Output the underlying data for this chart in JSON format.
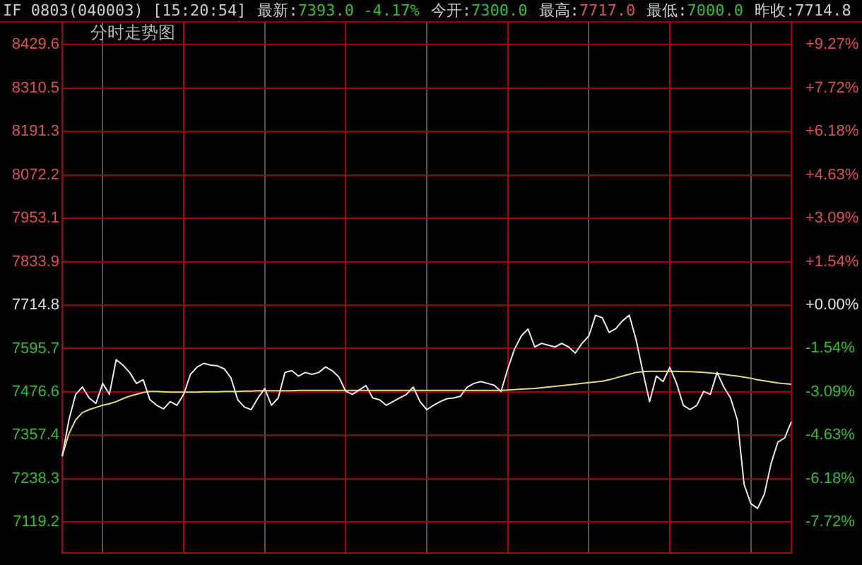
{
  "chart_data": {
    "type": "line",
    "title": "IF 0803(040003) [15:20:54]",
    "subtitle": "分时走势图",
    "annotations": [
      "最新:7393.0 -4.17%",
      "今开:7300.0",
      "最高:7717.0",
      "最低:7000.0",
      "昨收:7714.8"
    ],
    "categories": [
      null,
      null,
      null,
      null,
      null,
      null,
      null,
      null,
      null,
      null,
      null,
      null,
      null,
      null,
      null,
      null,
      null,
      null,
      null,
      null,
      null,
      null,
      null,
      null,
      null,
      null,
      null,
      null,
      null,
      null,
      null,
      null,
      null,
      null,
      null,
      null,
      null,
      null,
      null,
      null,
      null,
      null,
      null,
      null,
      null,
      null,
      null,
      null,
      null,
      null,
      null,
      null,
      null,
      null,
      null,
      null,
      null,
      null,
      null,
      null,
      null,
      null,
      null,
      null,
      null,
      null,
      null,
      null,
      null,
      null,
      null,
      null,
      null,
      null,
      null,
      null,
      null,
      null,
      null,
      null,
      null,
      null,
      null,
      null,
      null,
      null,
      null,
      null,
      null,
      null,
      null,
      null,
      null,
      null,
      null,
      null,
      null,
      null,
      null,
      null,
      null,
      null,
      null,
      null,
      null,
      null,
      null,
      null,
      null
    ],
    "series": [
      {
        "color": "#e8e8e8",
        "values": [
          7300,
          7400,
          7470,
          7490,
          7460,
          7445,
          7500,
          7470,
          7565,
          7550,
          7530,
          7500,
          7510,
          7455,
          7440,
          7430,
          7450,
          7440,
          7470,
          7525,
          7545,
          7555,
          7550,
          7548,
          7540,
          7515,
          7455,
          7435,
          7428,
          7460,
          7486,
          7440,
          7460,
          7530,
          7535,
          7520,
          7530,
          7525,
          7530,
          7545,
          7535,
          7517,
          7478,
          7470,
          7482,
          7494,
          7460,
          7455,
          7440,
          7450,
          7460,
          7470,
          7490,
          7450,
          7428,
          7440,
          7450,
          7458,
          7460,
          7465,
          7490,
          7500,
          7505,
          7500,
          7495,
          7478,
          7540,
          7594,
          7630,
          7649,
          7600,
          7610,
          7605,
          7600,
          7610,
          7600,
          7583,
          7610,
          7630,
          7687,
          7680,
          7640,
          7650,
          7672,
          7687,
          7620,
          7533,
          7450,
          7520,
          7505,
          7544,
          7500,
          7440,
          7428,
          7440,
          7478,
          7470,
          7530,
          7490,
          7460,
          7400,
          7223,
          7170,
          7157,
          7196,
          7280,
          7339,
          7350,
          7395
        ]
      },
      {
        "color": "#e0dc78",
        "values": [
          7300,
          7362,
          7400,
          7420,
          7428,
          7434,
          7440,
          7444,
          7450,
          7458,
          7465,
          7470,
          7475,
          7478,
          7478,
          7477,
          7476,
          7476,
          7476,
          7476,
          7476,
          7477,
          7477,
          7477,
          7478,
          7478,
          7478,
          7479,
          7479,
          7480,
          7480,
          7480,
          7480,
          7480,
          7480,
          7481,
          7481,
          7481,
          7481,
          7481,
          7481,
          7481,
          7481,
          7481,
          7481,
          7481,
          7481,
          7481,
          7481,
          7481,
          7481,
          7481,
          7481,
          7481,
          7481,
          7481,
          7481,
          7481,
          7481,
          7481,
          7481,
          7481,
          7481,
          7481,
          7481,
          7481,
          7482,
          7483,
          7484,
          7485,
          7486,
          7488,
          7490,
          7492,
          7494,
          7496,
          7498,
          7500,
          7502,
          7504,
          7506,
          7510,
          7515,
          7520,
          7525,
          7530,
          7532,
          7533,
          7533,
          7533,
          7533,
          7533,
          7532,
          7532,
          7531,
          7530,
          7529,
          7527,
          7525,
          7522,
          7520,
          7517,
          7514,
          7510,
          7507,
          7504,
          7501,
          7499,
          7498
        ]
      }
    ],
    "ylim": [
      7035,
      8490
    ],
    "yticks": [
      8429.6,
      8310.5,
      8191.3,
      8072.2,
      7953.1,
      7833.9,
      7714.8,
      7595.7,
      7476.6,
      7357.4,
      7238.3,
      7119.2
    ],
    "y2lim": [
      -8.81,
      10.05
    ],
    "y2ticks": [
      {
        "value": 9.27,
        "label": "+9.27%"
      },
      {
        "value": 7.72,
        "label": "+7.72%"
      },
      {
        "value": 6.18,
        "label": "+6.18%"
      },
      {
        "value": 4.63,
        "label": "+4.63%"
      },
      {
        "value": 3.09,
        "label": "+3.09%"
      },
      {
        "value": 1.54,
        "label": "+1.54%"
      },
      {
        "value": 0,
        "label": "+0.00%"
      },
      {
        "value": -1.54,
        "label": "-1.54%"
      },
      {
        "value": -3.09,
        "label": "-3.09%"
      },
      {
        "value": -4.63,
        "label": "-4.63%"
      },
      {
        "value": -6.18,
        "label": "-6.18%"
      },
      {
        "value": -7.72,
        "label": "-7.72%"
      }
    ],
    "grid": true,
    "legend": false,
    "marker": "none",
    "line_style": "solid",
    "tick_labels": "y"
  }
}
